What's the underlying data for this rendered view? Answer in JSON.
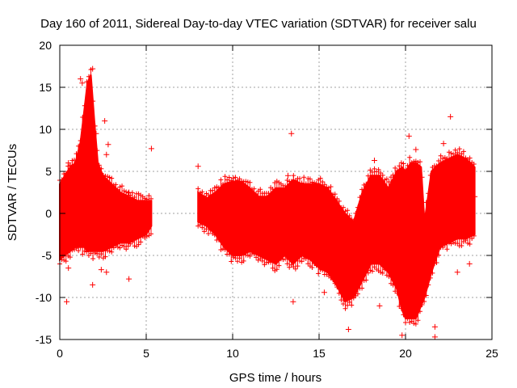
{
  "chart_data": {
    "type": "scatter",
    "title": "Day 160 of 2011, Sidereal Day-to-day VTEC variation (SDTVAR) for receiver salu",
    "xlabel": "GPS time / hours",
    "ylabel": "SDTVAR / TECUs",
    "xlim": [
      0,
      25
    ],
    "ylim": [
      -15,
      20
    ],
    "x_ticks": [
      0,
      5,
      10,
      15,
      20,
      25
    ],
    "y_ticks": [
      -15,
      -10,
      -5,
      0,
      5,
      10,
      15,
      20
    ],
    "grid": true,
    "marker": "+",
    "color": "#ff0000",
    "series": [
      {
        "name": "SDTVAR",
        "envelope": {
          "x": [
            0.0,
            0.3,
            0.6,
            0.9,
            1.2,
            1.4,
            1.6,
            1.8,
            2.0,
            2.2,
            2.5,
            3.0,
            3.5,
            4.0,
            4.5,
            5.0,
            5.3,
            8.0,
            8.5,
            9.0,
            9.5,
            10.0,
            10.5,
            11.0,
            11.5,
            12.0,
            12.5,
            13.0,
            13.5,
            14.0,
            14.5,
            15.0,
            15.5,
            16.0,
            16.5,
            17.0,
            17.5,
            18.0,
            18.5,
            19.0,
            19.5,
            19.8,
            20.0,
            20.3,
            20.6,
            20.9,
            21.1,
            21.5,
            22.0,
            22.5,
            23.0,
            23.5,
            24.0
          ],
          "upper": [
            3.5,
            4.5,
            5.5,
            6.0,
            8.5,
            12.0,
            15.5,
            16.5,
            11.0,
            6.0,
            4.5,
            3.5,
            2.5,
            2.0,
            1.5,
            1.5,
            1.5,
            2.5,
            1.8,
            2.5,
            3.5,
            3.8,
            3.8,
            3.0,
            2.0,
            2.0,
            3.0,
            3.0,
            4.0,
            3.5,
            3.5,
            3.5,
            3.0,
            1.5,
            0.0,
            -1.0,
            2.5,
            4.5,
            4.5,
            3.0,
            5.0,
            5.5,
            5.0,
            6.0,
            6.0,
            5.5,
            -1.0,
            5.0,
            6.0,
            6.5,
            7.0,
            6.5,
            5.5
          ],
          "lower": [
            -5.5,
            -5.0,
            -4.5,
            -4.0,
            -4.0,
            -4.0,
            -4.5,
            -4.5,
            -4.5,
            -4.5,
            -4.5,
            -4.0,
            -3.5,
            -3.5,
            -3.0,
            -2.5,
            -1.5,
            -1.0,
            -1.5,
            -2.5,
            -4.0,
            -5.0,
            -5.0,
            -4.5,
            -5.0,
            -5.5,
            -6.0,
            -5.0,
            -6.0,
            -5.0,
            -5.5,
            -6.5,
            -7.0,
            -8.5,
            -10.5,
            -10.0,
            -8.0,
            -6.0,
            -6.0,
            -7.0,
            -9.0,
            -11.5,
            -12.5,
            -12.5,
            -12.5,
            -11.0,
            -10.0,
            -7.0,
            -4.0,
            -3.5,
            -3.0,
            -3.0,
            -2.5
          ]
        },
        "outliers": [
          [
            0.4,
            -10.5
          ],
          [
            0.5,
            6.0
          ],
          [
            0.5,
            -6.5
          ],
          [
            1.2,
            16.0
          ],
          [
            1.3,
            15.5
          ],
          [
            1.9,
            17.2
          ],
          [
            2.1,
            9.5
          ],
          [
            2.6,
            11.0
          ],
          [
            2.8,
            8.2
          ],
          [
            2.7,
            7.0
          ],
          [
            1.9,
            -8.5
          ],
          [
            2.4,
            -6.7
          ],
          [
            2.7,
            -7.0
          ],
          [
            4.0,
            -7.8
          ],
          [
            4.0,
            2.5
          ],
          [
            5.3,
            7.7
          ],
          [
            8.0,
            5.6
          ],
          [
            13.4,
            9.5
          ],
          [
            13.5,
            -10.5
          ],
          [
            13.2,
            4.5
          ],
          [
            15.3,
            -9.4
          ],
          [
            16.7,
            -13.8
          ],
          [
            18.2,
            6.3
          ],
          [
            18.5,
            -11.0
          ],
          [
            19.8,
            -14.5
          ],
          [
            20.2,
            9.2
          ],
          [
            20.6,
            7.6
          ],
          [
            21.7,
            -13.5
          ],
          [
            21.7,
            -14.7
          ],
          [
            22.2,
            8.3
          ],
          [
            22.6,
            11.5
          ],
          [
            23.2,
            5.5
          ],
          [
            23.0,
            -7.0
          ],
          [
            23.7,
            -6.0
          ],
          [
            24.0,
            2.0
          ]
        ]
      }
    ]
  }
}
